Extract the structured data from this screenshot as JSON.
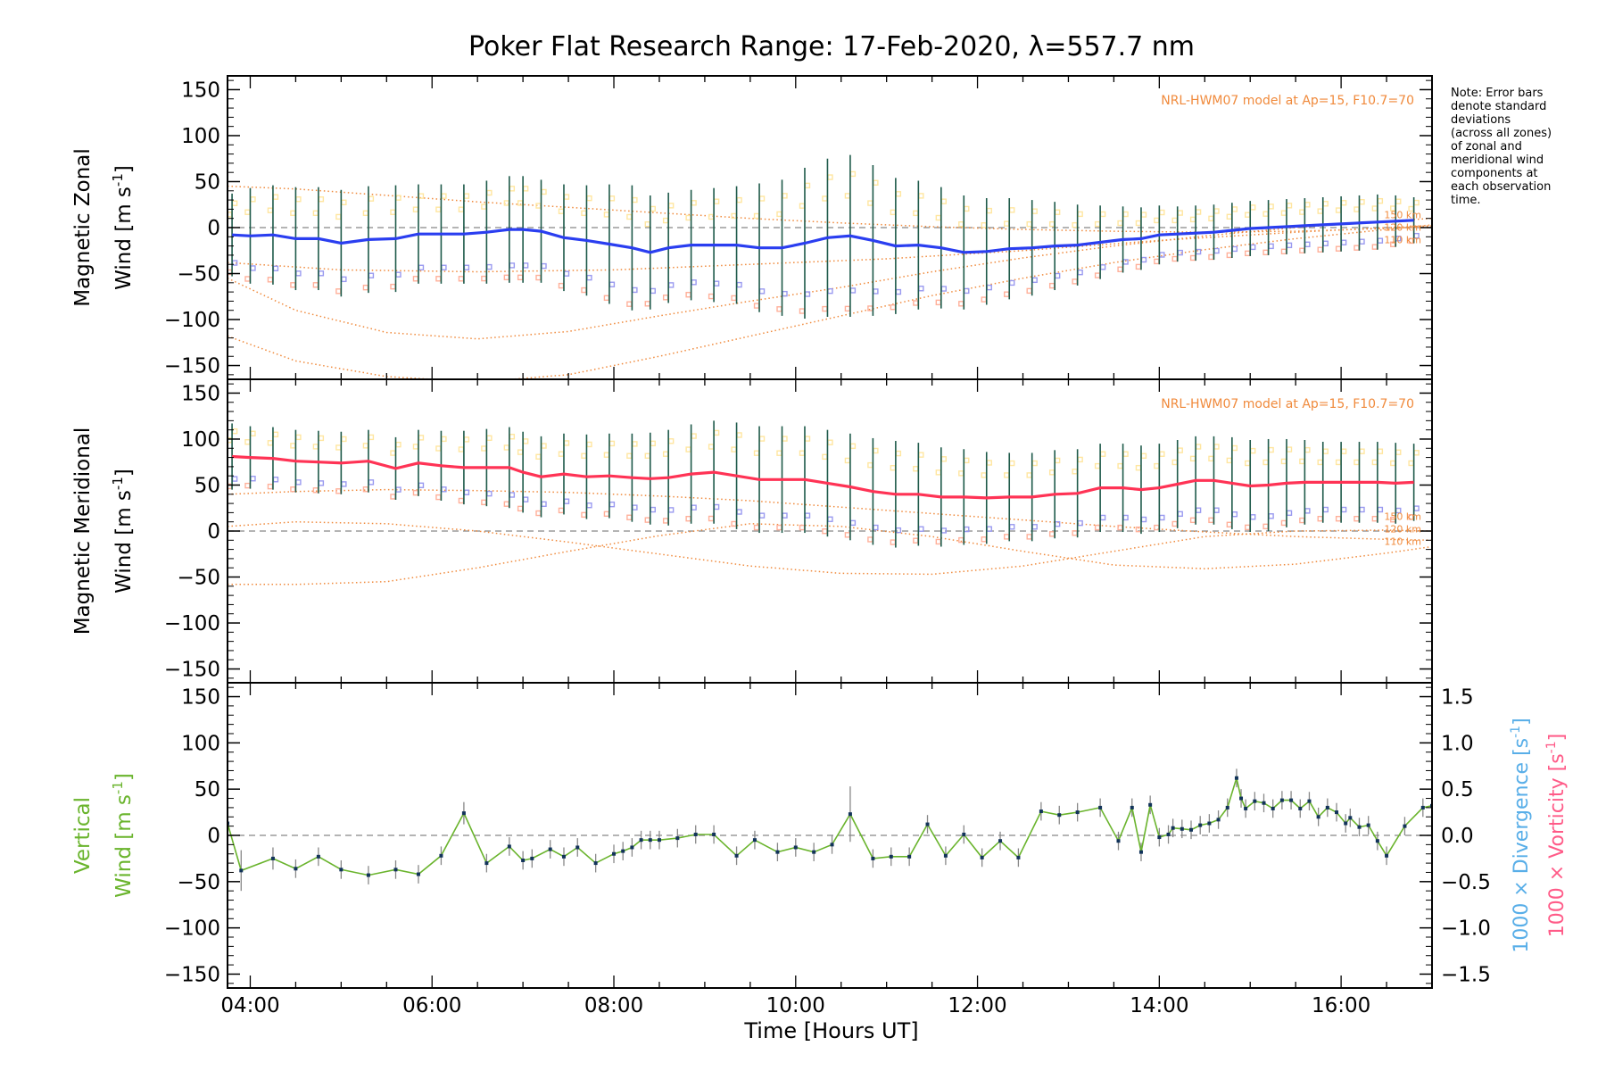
{
  "chart_data": {
    "type": "line",
    "title": "Poker Flat Research Range: 17-Feb-2020, λ=557.7 nm",
    "xlabel": "Time [Hours UT]",
    "x_tick_labels": [
      "04:00",
      "06:00",
      "08:00",
      "10:00",
      "12:00",
      "14:00",
      "16:00"
    ],
    "x_tick_hours": [
      4,
      6,
      8,
      10,
      12,
      14,
      16
    ],
    "xlim": [
      3.75,
      17.0
    ],
    "note": "Note: Error bars\ndenote standard\ndeviations\n(across all zones)\nof zonal and\nmeridional wind\ncomponents at\neach observation\ntime.",
    "colors": {
      "zonal": "#2a3ef0",
      "meridional": "#ff3355",
      "vertical": "#6ab42d",
      "model": "#f08a3c",
      "divergence": "#58aee8",
      "vorticity": "#ff5b88",
      "errorbar": "#1e5a4a",
      "zone_blue": "#9a9af0",
      "zone_salmon": "#ffb09a",
      "zone_yellow": "#ffe6a0"
    },
    "panels": [
      {
        "id": "zonal",
        "ylabel_line1": "Magnetic Zonal",
        "ylabel_line2": "Wind",
        "ylabel_unit": "m s",
        "ylabel_exp": "-1",
        "ylim": [
          -165,
          165
        ],
        "y_ticks": [
          -150,
          -100,
          -50,
          0,
          50,
          100,
          150
        ],
        "y_tick_labels": [
          "−150",
          "−100",
          "−50",
          "0",
          "50",
          "100",
          "150"
        ],
        "model_label": "NRL-HWM07 model at Ap=15, F10.7=70",
        "altitude_labels": [
          "150 km",
          "120 km",
          "110 km"
        ],
        "series": [
          {
            "x": [
              3.8,
              4.0,
              4.25,
              4.5,
              4.75,
              5.0,
              5.3,
              5.6,
              5.85,
              6.1,
              6.35,
              6.6,
              6.85,
              7.0,
              7.2,
              7.45,
              7.7,
              7.95,
              8.2,
              8.4,
              8.6,
              8.85,
              9.1,
              9.35,
              9.6,
              9.85,
              10.1,
              10.35,
              10.6,
              10.85,
              11.1,
              11.35,
              11.6,
              11.85,
              12.1,
              12.35,
              12.6,
              12.85,
              13.1,
              13.35,
              13.6,
              13.8,
              14.0,
              14.2,
              14.4,
              14.6,
              14.8,
              15.0,
              15.2,
              15.4,
              15.6,
              15.8,
              16.0,
              16.2,
              16.4,
              16.6,
              16.8
            ],
            "y": [
              -8,
              -9,
              -8,
              -12,
              -12,
              -17,
              -13,
              -12,
              -7,
              -7,
              -7,
              -5,
              -2,
              -2,
              -4,
              -11,
              -14,
              -18,
              -22,
              -27,
              -22,
              -19,
              -19,
              -19,
              -22,
              -22,
              -17,
              -11,
              -9,
              -14,
              -20,
              -19,
              -22,
              -27,
              -26,
              -23,
              -22,
              -20,
              -19,
              -16,
              -13,
              -12,
              -8,
              -7,
              -6,
              -5,
              -3,
              -1,
              0,
              1,
              2,
              3,
              4,
              5,
              6,
              7,
              8
            ],
            "err": [
              45,
              52,
              54,
              56,
              56,
              58,
              58,
              58,
              54,
              54,
              54,
              56,
              58,
              58,
              56,
              58,
              60,
              65,
              68,
              62,
              60,
              60,
              62,
              64,
              70,
              74,
              82,
              86,
              88,
              82,
              74,
              70,
              66,
              62,
              58,
              55,
              52,
              48,
              44,
              40,
              36,
              34,
              32,
              30,
              30,
              30,
              30,
              30,
              30,
              30,
              30,
              30,
              30,
              30,
              30,
              28,
              25
            ]
          }
        ],
        "model_curves": [
          {
            "x": [
              3.75,
              4.5,
              5.5,
              6.5,
              7.5,
              8.5,
              9.5,
              10.5,
              11.5,
              12.5,
              13.5,
              14.5,
              15.5,
              16.5,
              17.0
            ],
            "y": [
              45,
              42,
              35,
              28,
              22,
              16,
              10,
              5,
              1,
              -2,
              -4,
              -5,
              -4,
              -1,
              1
            ]
          },
          {
            "x": [
              3.75,
              4.5,
              5.5,
              6.5,
              7.5,
              8.5,
              9.5,
              10.5,
              11.5,
              12.5,
              13.5,
              14.5,
              15.5,
              16.5,
              17.0
            ],
            "y": [
              -55,
              -90,
              -114,
              -121,
              -113,
              -96,
              -80,
              -65,
              -48,
              -33,
              -20,
              -9,
              0,
              7,
              10
            ]
          },
          {
            "x": [
              3.75,
              4.5,
              5.5,
              6.5,
              7.5,
              8.5,
              9.5,
              10.5,
              11.5,
              12.5,
              13.5,
              14.5,
              15.5,
              16.5,
              17.0
            ],
            "y": [
              -118,
              -145,
              -162,
              -168,
              -160,
              -140,
              -118,
              -96,
              -74,
              -55,
              -38,
              -24,
              -12,
              -2,
              3
            ]
          },
          {
            "x": [
              3.75,
              5.0,
              6.5,
              8.0,
              9.5,
              11.0,
              12.5,
              14.0,
              15.5,
              16.5,
              17.0
            ],
            "y": [
              -38,
              -46,
              -48,
              -46,
              -40,
              -34,
              -25,
              -14,
              -5,
              0,
              2
            ]
          }
        ]
      },
      {
        "id": "meridional",
        "ylabel_line1": "Magnetic Meridional",
        "ylabel_line2": "Wind",
        "ylabel_unit": "m s",
        "ylabel_exp": "-1",
        "ylim": [
          -165,
          165
        ],
        "y_ticks": [
          -150,
          -100,
          -50,
          0,
          50,
          100,
          150
        ],
        "y_tick_labels": [
          "−150",
          "−100",
          "−50",
          "0",
          "50",
          "100",
          "150"
        ],
        "model_label": "NRL-HWM07 model at Ap=15, F10.7=70",
        "altitude_labels": [
          "150 km",
          "120 km",
          "110 km"
        ],
        "series": [
          {
            "x": [
              3.8,
              4.0,
              4.25,
              4.5,
              4.75,
              5.0,
              5.3,
              5.6,
              5.85,
              6.1,
              6.35,
              6.6,
              6.85,
              7.0,
              7.2,
              7.45,
              7.7,
              7.95,
              8.2,
              8.4,
              8.6,
              8.85,
              9.1,
              9.35,
              9.6,
              9.85,
              10.1,
              10.35,
              10.6,
              10.85,
              11.1,
              11.35,
              11.6,
              11.85,
              12.1,
              12.35,
              12.6,
              12.85,
              13.1,
              13.35,
              13.6,
              13.8,
              14.0,
              14.2,
              14.4,
              14.6,
              14.8,
              15.0,
              15.2,
              15.4,
              15.6,
              15.8,
              16.0,
              16.2,
              16.4,
              16.6,
              16.8
            ],
            "y": [
              81,
              80,
              79,
              76,
              75,
              74,
              76,
              68,
              74,
              71,
              69,
              69,
              69,
              64,
              59,
              62,
              59,
              60,
              58,
              57,
              58,
              62,
              64,
              60,
              56,
              56,
              56,
              52,
              48,
              43,
              40,
              40,
              37,
              37,
              36,
              37,
              37,
              40,
              41,
              47,
              47,
              45,
              47,
              51,
              55,
              55,
              52,
              49,
              50,
              52,
              53,
              53,
              53,
              53,
              53,
              52,
              53
            ],
            "err": [
              36,
              34,
              34,
              34,
              34,
              34,
              34,
              34,
              36,
              38,
              40,
              42,
              44,
              44,
              44,
              44,
              46,
              46,
              48,
              50,
              52,
              54,
              56,
              58,
              58,
              58,
              58,
              58,
              58,
              58,
              58,
              56,
              54,
              52,
              50,
              48,
              48,
              48,
              48,
              48,
              48,
              48,
              48,
              48,
              48,
              48,
              50,
              50,
              50,
              48,
              46,
              44,
              44,
              44,
              44,
              44,
              42
            ]
          }
        ],
        "model_curves": [
          {
            "x": [
              3.75,
              4.5,
              5.5,
              6.5,
              7.5,
              8.5,
              9.5,
              10.5,
              11.5,
              12.5,
              13.5,
              14.5,
              15.5,
              16.5,
              17.0
            ],
            "y": [
              40,
              43,
              45,
              44,
              42,
              38,
              33,
              26,
              19,
              12,
              5,
              -1,
              -6,
              -9,
              -10
            ]
          },
          {
            "x": [
              3.75,
              4.5,
              5.5,
              6.5,
              7.5,
              8.5,
              9.5,
              10.5,
              11.5,
              12.5,
              13.5,
              14.5,
              15.5,
              16.5,
              17.0
            ],
            "y": [
              5,
              10,
              8,
              0,
              -12,
              -25,
              -38,
              -46,
              -47,
              -38,
              -22,
              -6,
              0,
              1,
              0
            ]
          },
          {
            "x": [
              3.75,
              4.5,
              5.5,
              6.5,
              7.5,
              8.5,
              9.5,
              10.5,
              11.5,
              12.5,
              13.5,
              14.5,
              15.5,
              16.5,
              17.0
            ],
            "y": [
              -58,
              -58,
              -55,
              -40,
              -22,
              -5,
              8,
              5,
              -6,
              -22,
              -37,
              -41,
              -36,
              -24,
              -17
            ]
          }
        ]
      },
      {
        "id": "vertical",
        "ylabel_line1": "Vertical",
        "ylabel_line2": "Wind",
        "ylabel_unit": "m s",
        "ylabel_exp": "-1",
        "ylim": [
          -165,
          165
        ],
        "y_ticks": [
          -150,
          -100,
          -50,
          0,
          50,
          100,
          150
        ],
        "y_tick_labels": [
          "−150",
          "−100",
          "−50",
          "0",
          "50",
          "100",
          "150"
        ],
        "right_axis": {
          "ylim": [
            -1.65,
            1.65
          ],
          "ticks": [
            -1.5,
            -1.0,
            -0.5,
            0.0,
            0.5,
            1.0,
            1.5
          ],
          "tick_labels": [
            "−1.5",
            "−1.0",
            "−0.5",
            "0.0",
            "0.5",
            "1.0",
            "1.5"
          ],
          "label_divergence": "1000 × Divergence",
          "label_vorticity": "1000 × Vorticity",
          "label_unit": "s",
          "label_exp": "-1"
        },
        "series": [
          {
            "x": [
              3.75,
              3.9,
              4.25,
              4.5,
              4.75,
              5.0,
              5.3,
              5.6,
              5.85,
              6.1,
              6.35,
              6.6,
              6.85,
              7.0,
              7.1,
              7.3,
              7.45,
              7.6,
              7.8,
              8.0,
              8.1,
              8.2,
              8.3,
              8.4,
              8.5,
              8.7,
              8.9,
              9.1,
              9.35,
              9.55,
              9.8,
              10.0,
              10.2,
              10.4,
              10.6,
              10.85,
              11.05,
              11.25,
              11.45,
              11.65,
              11.85,
              12.05,
              12.25,
              12.45,
              12.7,
              12.9,
              13.1,
              13.35,
              13.55,
              13.7,
              13.8,
              13.9,
              14.0,
              14.1,
              14.15,
              14.25,
              14.35,
              14.45,
              14.55,
              14.65,
              14.75,
              14.85,
              14.9,
              14.95,
              15.05,
              15.15,
              15.25,
              15.35,
              15.45,
              15.55,
              15.65,
              15.75,
              15.85,
              15.95,
              16.05,
              16.1,
              16.2,
              16.3,
              16.4,
              16.5,
              16.7,
              16.9,
              17.0
            ],
            "y": [
              13,
              -38,
              -25,
              -36,
              -23,
              -37,
              -43,
              -37,
              -42,
              -22,
              24,
              -30,
              -12,
              -27,
              -25,
              -15,
              -23,
              -13,
              -30,
              -20,
              -17,
              -13,
              -5,
              -5,
              -5,
              -3,
              1,
              1,
              -22,
              -5,
              -18,
              -13,
              -18,
              -10,
              23,
              -25,
              -23,
              -23,
              12,
              -22,
              1,
              -24,
              -6,
              -24,
              26,
              22,
              25,
              30,
              -6,
              30,
              -18,
              33,
              -2,
              1,
              8,
              7,
              6,
              11,
              13,
              17,
              30,
              62,
              40,
              29,
              37,
              35,
              29,
              38,
              38,
              29,
              37,
              20,
              30,
              25,
              13,
              19,
              9,
              11,
              -6,
              -22,
              10,
              30,
              32
            ],
            "err": [
              22,
              22,
              12,
              10,
              10,
              10,
              10,
              10,
              10,
              10,
              12,
              10,
              10,
              10,
              10,
              10,
              10,
              10,
              10,
              10,
              10,
              10,
              10,
              10,
              10,
              10,
              10,
              10,
              10,
              10,
              10,
              10,
              10,
              10,
              30,
              10,
              10,
              10,
              10,
              10,
              10,
              10,
              10,
              10,
              10,
              10,
              10,
              10,
              10,
              10,
              10,
              10,
              10,
              10,
              10,
              10,
              10,
              10,
              10,
              10,
              10,
              10,
              10,
              10,
              10,
              10,
              10,
              10,
              10,
              10,
              10,
              10,
              10,
              10,
              10,
              10,
              10,
              10,
              10,
              10,
              10,
              10,
              10
            ]
          }
        ]
      }
    ]
  }
}
